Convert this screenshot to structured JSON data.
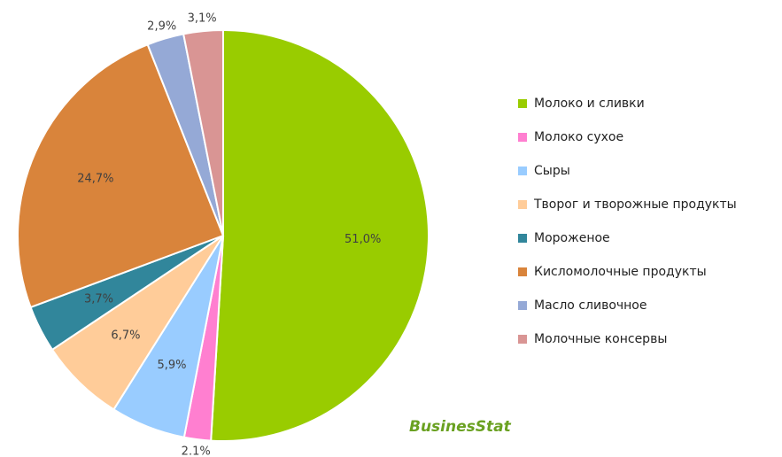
{
  "chart_data": {
    "type": "pie",
    "categories": [
      "Молоко и сливки",
      "Молоко сухое",
      "Сыры",
      "Творог и творожные продукты",
      "Мороженое",
      "Кисломолочные продукты",
      "Масло сливочное",
      "Молочные консервы"
    ],
    "values": [
      51.0,
      2.1,
      5.9,
      6.7,
      3.7,
      24.7,
      2.9,
      3.1
    ],
    "value_labels": [
      "51,0%",
      "2.1%",
      "5,9%",
      "6,7%",
      "3,7%",
      "24,7%",
      "2,9%",
      "3,1%"
    ],
    "colors": [
      "#99cc00",
      "#ff7fd0",
      "#99ccff",
      "#ffcc99",
      "#31869b",
      "#d9843b",
      "#95a9d6",
      "#d99594"
    ],
    "legend": "right"
  },
  "logo": "BusinesStat"
}
